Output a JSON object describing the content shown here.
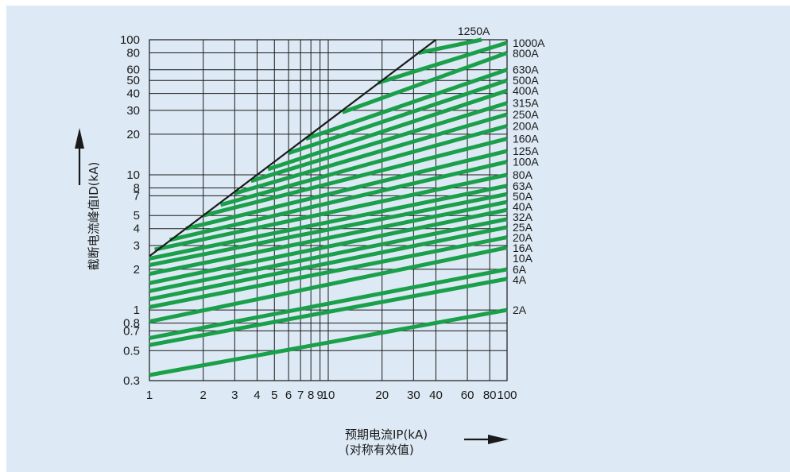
{
  "chart_data": {
    "type": "line",
    "scale": {
      "x": "log",
      "y": "log"
    },
    "grid": true,
    "xlim": [
      1,
      100
    ],
    "ylim": [
      0.3,
      100
    ],
    "x_ticks": [
      "1",
      "2",
      "3",
      "4",
      "5",
      "6",
      "7",
      "8",
      "9",
      "10",
      "20",
      "30",
      "40",
      "60",
      "80",
      "100"
    ],
    "x_tick_values": [
      1,
      2,
      3,
      4,
      5,
      6,
      7,
      8,
      9,
      10,
      20,
      30,
      40,
      60,
      80,
      100
    ],
    "y_ticks": [
      "0.3",
      "0.5",
      "0.7",
      "0.8",
      "1",
      "2",
      "3",
      "4",
      "5",
      "7",
      "8",
      "10",
      "20",
      "30",
      "40",
      "50",
      "60",
      "80",
      "100"
    ],
    "y_tick_values": [
      0.3,
      0.5,
      0.7,
      0.8,
      1,
      2,
      3,
      4,
      5,
      7,
      8,
      10,
      20,
      30,
      40,
      50,
      60,
      80,
      100
    ],
    "xlabel": [
      "预期电流IP(kA)",
      "(对称有效值)"
    ],
    "ylabel": "截断电流峰值ID(kA)",
    "limit_line": {
      "x": [
        1,
        40
      ],
      "y": [
        2.5,
        100
      ],
      "color": "#1a1a1a"
    },
    "series_color": "#1aa04a",
    "series": [
      {
        "name": "2A",
        "x": [
          1,
          100
        ],
        "y": [
          0.33,
          1.0
        ]
      },
      {
        "name": "4A",
        "x": [
          1,
          100
        ],
        "y": [
          0.55,
          1.7
        ]
      },
      {
        "name": "6A",
        "x": [
          1,
          100
        ],
        "y": [
          0.62,
          2.0
        ]
      },
      {
        "name": "10A",
        "x": [
          1,
          100
        ],
        "y": [
          0.82,
          2.9
        ]
      },
      {
        "name": "16A",
        "x": [
          1,
          100
        ],
        "y": [
          1.05,
          3.45
        ]
      },
      {
        "name": "20A",
        "x": [
          1,
          100
        ],
        "y": [
          1.2,
          4.1
        ]
      },
      {
        "name": "25A",
        "x": [
          1,
          100
        ],
        "y": [
          1.38,
          4.7
        ]
      },
      {
        "name": "32A",
        "x": [
          1,
          100
        ],
        "y": [
          1.58,
          5.5
        ]
      },
      {
        "name": "40A",
        "x": [
          1,
          100
        ],
        "y": [
          1.85,
          6.3
        ]
      },
      {
        "name": "50A",
        "x": [
          1,
          100
        ],
        "y": [
          2.15,
          7.2
        ]
      },
      {
        "name": "63A",
        "x": [
          1,
          100
        ],
        "y": [
          2.4,
          8.3
        ]
      },
      {
        "name": "80A",
        "x": [
          1.07,
          100
        ],
        "y": [
          2.8,
          10.0
        ]
      },
      {
        "name": "100A",
        "x": [
          1.3,
          100
        ],
        "y": [
          3.3,
          12.5
        ]
      },
      {
        "name": "125A",
        "x": [
          1.6,
          100
        ],
        "y": [
          4.0,
          15.0
        ]
      },
      {
        "name": "160A",
        "x": [
          2.0,
          100
        ],
        "y": [
          5.0,
          18.5
        ]
      },
      {
        "name": "200A",
        "x": [
          2.5,
          100
        ],
        "y": [
          6.0,
          23.0
        ]
      },
      {
        "name": "250A",
        "x": [
          3.0,
          100
        ],
        "y": [
          7.3,
          28.0
        ]
      },
      {
        "name": "315A",
        "x": [
          3.7,
          100
        ],
        "y": [
          9.0,
          34.0
        ]
      },
      {
        "name": "400A",
        "x": [
          4.6,
          100
        ],
        "y": [
          11.0,
          42.0
        ]
      },
      {
        "name": "500A",
        "x": [
          6.0,
          100
        ],
        "y": [
          14.5,
          50.0
        ]
      },
      {
        "name": "630A",
        "x": [
          7.5,
          100
        ],
        "y": [
          18.5,
          60.0
        ]
      },
      {
        "name": "800A",
        "x": [
          12.0,
          100
        ],
        "y": [
          29.0,
          80.0
        ]
      },
      {
        "name": "1000A",
        "x": [
          19.0,
          100
        ],
        "y": [
          48.0,
          95.0
        ]
      },
      {
        "name": "1250A",
        "x": [
          32.0,
          72
        ],
        "y": [
          80.0,
          100.0
        ]
      }
    ]
  }
}
